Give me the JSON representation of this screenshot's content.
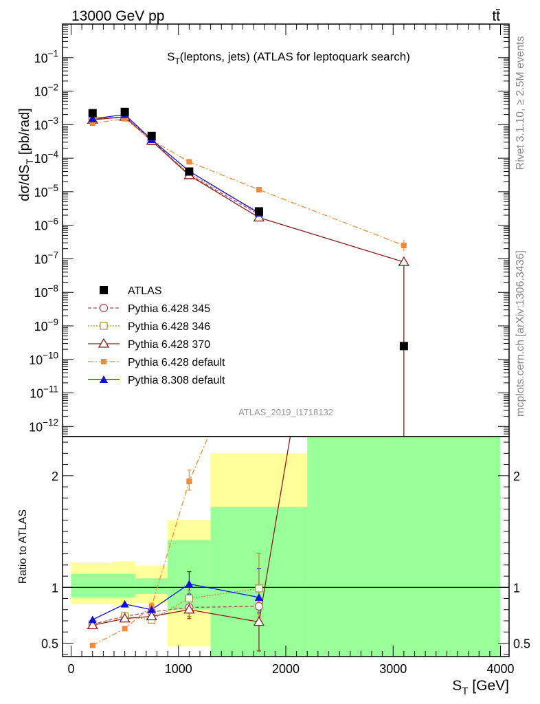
{
  "header": {
    "energy_label": "13000 GeV pp",
    "process_label": "tt̄"
  },
  "side_labels": {
    "rivet": "Rivet 3.1.10, ≥ 2.5M events",
    "mcplots": "mcplots.cern.ch [arXiv:1306.3436]"
  },
  "analysis_id": "ATLAS_2019_I1718132",
  "chart_data": [
    {
      "type": "scatter",
      "panel": "main",
      "title": "S_T(leptons, jets) (ATLAS for leptoquark search)",
      "ylabel": "dσ/dS_T [pb/rad]",
      "yscale": "log",
      "ylim": [
        5e-13,
        1
      ],
      "xlim": [
        -80,
        4080
      ],
      "y_tick_labels": [
        "10^-12",
        "10^-11",
        "10^-10",
        "10^-9",
        "10^-8",
        "10^-7",
        "10^-6",
        "10^-5",
        "10^-4",
        "10^-3",
        "10^-2",
        "10^-1"
      ],
      "legend": "middle-left",
      "series": [
        {
          "name": "ATLAS",
          "color": "#000000",
          "marker": "square-filled",
          "x": [
            200,
            500,
            750,
            1100,
            1750,
            3100
          ],
          "y": [
            0.0022,
            0.0024,
            0.00046,
            4e-05,
            2.6e-06,
            2.5e-10
          ]
        },
        {
          "name": "Pythia 6.428 345",
          "color": "#b04a5a",
          "marker": "circle-open",
          "dash": "5,3",
          "x": [
            200,
            500,
            750,
            1100,
            1750
          ],
          "y": [
            0.0015,
            0.0017,
            0.00035,
            3.2e-05,
            2.1e-06
          ]
        },
        {
          "name": "Pythia 6.428 346",
          "color": "#b5882e",
          "marker": "square-open",
          "dash": "2,2",
          "x": [
            200,
            500,
            750,
            1100,
            1750
          ],
          "y": [
            0.0015,
            0.0017,
            0.00032,
            3.5e-05,
            2.5e-06
          ]
        },
        {
          "name": "Pythia 6.428 370",
          "color": "#8b1a1a",
          "marker": "triangle-open",
          "dash": "",
          "x": [
            200,
            500,
            750,
            1100,
            1750,
            3100
          ],
          "y": [
            0.0014,
            0.0017,
            0.00033,
            3.1e-05,
            1.7e-06,
            8e-08
          ]
        },
        {
          "name": "Pythia 6.428 default",
          "color": "#f58a37",
          "marker": "square-filled-small",
          "dash": "8,3,2,3",
          "x": [
            200,
            500,
            750,
            1100,
            1750,
            3100
          ],
          "y": [
            0.0011,
            0.0015,
            0.00035,
            7.8e-05,
            1.15e-05,
            2.5e-07
          ]
        },
        {
          "name": "Pythia 8.308 default",
          "color": "#1010dd",
          "marker": "triangle-filled",
          "dash": "",
          "x": [
            200,
            500,
            750,
            1100,
            1750
          ],
          "y": [
            0.0015,
            0.002,
            0.00036,
            4.1e-05,
            2.3e-06
          ]
        }
      ]
    },
    {
      "type": "scatter",
      "panel": "ratio",
      "xlabel": "S_T [GeV]",
      "ylabel": "Ratio to ATLAS",
      "ylim": [
        0.38,
        2.35
      ],
      "xlim": [
        -80,
        4080
      ],
      "y_ticks": [
        0.5,
        1,
        2
      ],
      "x_ticks": [
        0,
        1000,
        2000,
        3000,
        4000
      ],
      "bands": [
        {
          "x0": 0,
          "x1": 400,
          "yellow": [
            0.85,
            1.22
          ],
          "green": [
            0.91,
            1.12
          ]
        },
        {
          "x0": 400,
          "x1": 600,
          "yellow": [
            0.84,
            1.23
          ],
          "green": [
            0.91,
            1.12
          ]
        },
        {
          "x0": 600,
          "x1": 900,
          "yellow": [
            0.86,
            1.19
          ],
          "green": [
            0.94,
            1.08
          ]
        },
        {
          "x0": 900,
          "x1": 1300,
          "yellow": [
            0.47,
            1.6
          ],
          "green": [
            0.8,
            1.42
          ]
        },
        {
          "x0": 1300,
          "x1": 2200,
          "yellow": [
            0.38,
            2.2
          ],
          "green": [
            0.38,
            1.72
          ]
        },
        {
          "x0": 2200,
          "x1": 4000,
          "yellow": [
            0.38,
            2.35
          ],
          "green": [
            0.38,
            2.35
          ]
        }
      ],
      "series": [
        {
          "name": "Pythia 6.428 345",
          "x": [
            200,
            500,
            750,
            1100,
            1750
          ],
          "y": [
            0.67,
            0.74,
            0.78,
            0.82,
            0.83
          ]
        },
        {
          "name": "Pythia 6.428 346",
          "x": [
            200,
            500,
            750,
            1100,
            1750
          ],
          "y": [
            0.67,
            0.74,
            0.71,
            0.9,
            0.99
          ]
        },
        {
          "name": "Pythia 6.428 370",
          "x": [
            200,
            500,
            750,
            1100,
            1750,
            2050
          ],
          "y": [
            0.66,
            0.72,
            0.74,
            0.8,
            0.69,
            2.4
          ]
        },
        {
          "name": "Pythia 6.428 default",
          "x": [
            200,
            500,
            750,
            1100,
            1300
          ],
          "y": [
            0.48,
            0.63,
            0.83,
            1.95,
            2.4
          ]
        },
        {
          "name": "Pythia 8.308 default",
          "x": [
            200,
            500,
            750,
            1100,
            1750
          ],
          "y": [
            0.71,
            0.85,
            0.8,
            1.03,
            0.91
          ]
        }
      ]
    }
  ]
}
